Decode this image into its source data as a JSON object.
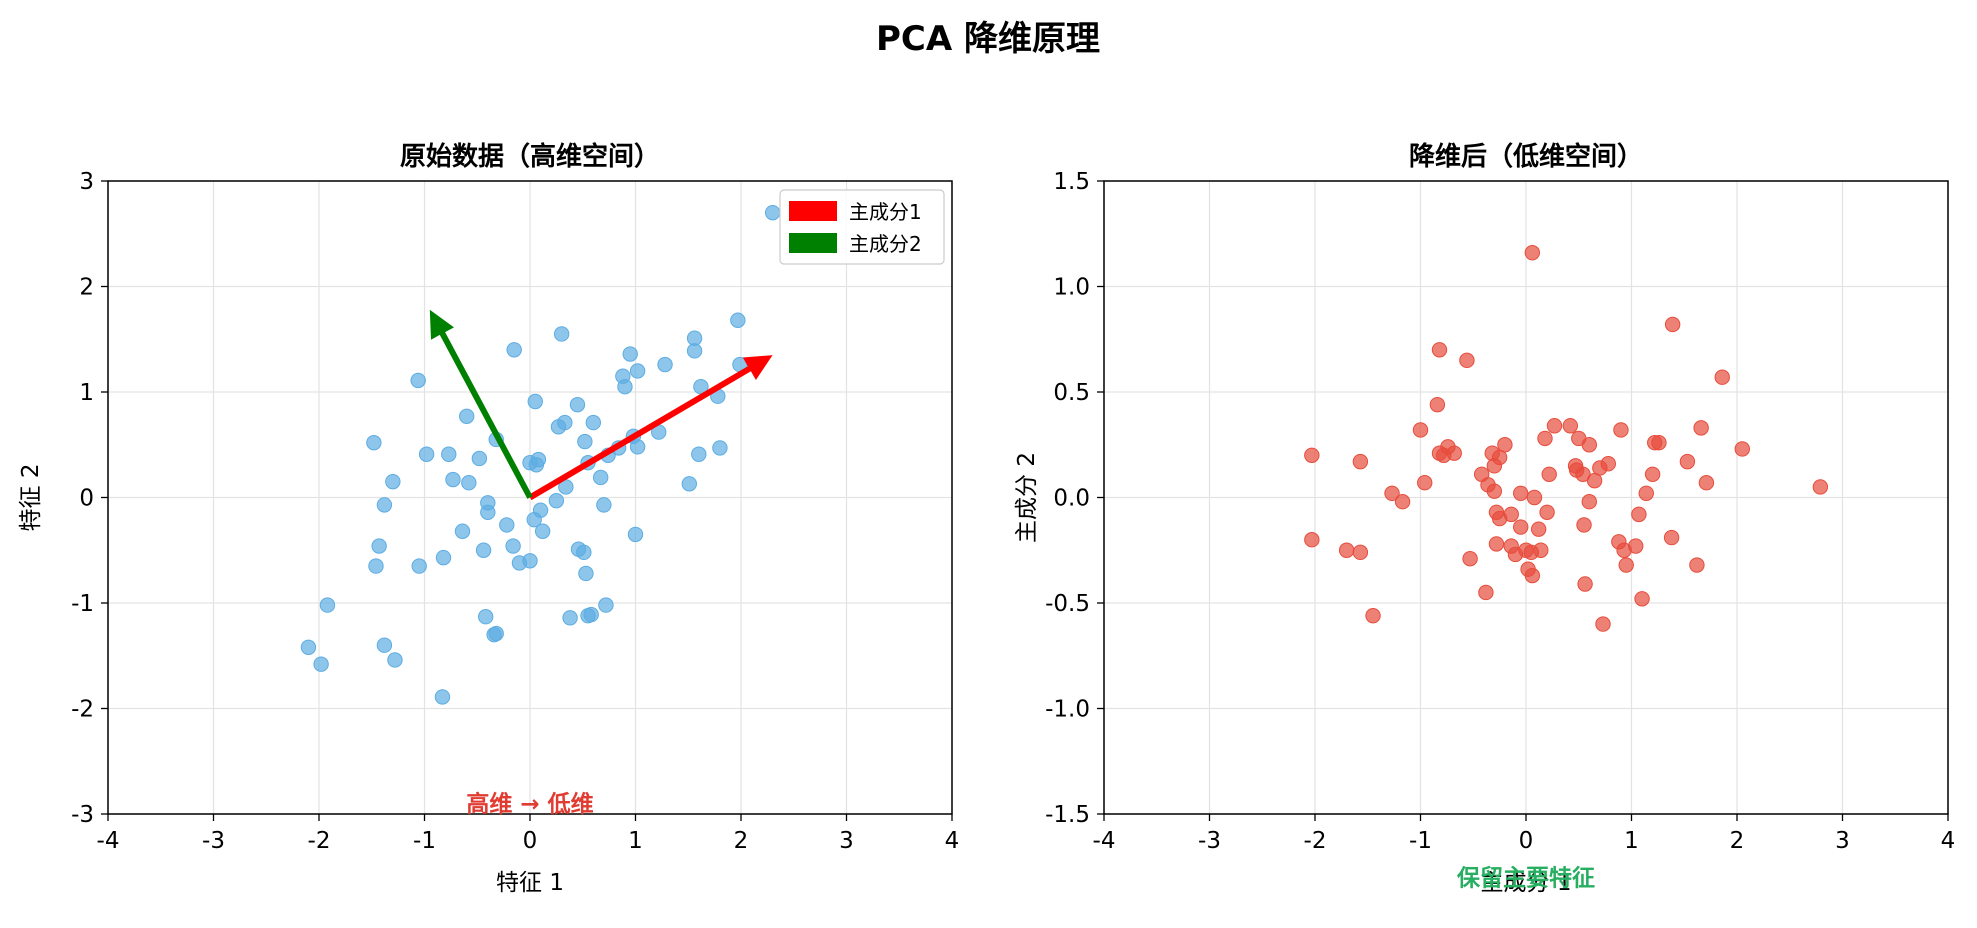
{
  "figure": {
    "title": "PCA 降维原理"
  },
  "chart_data": [
    {
      "type": "scatter",
      "title": "原始数据（高维空间）",
      "xlabel": "特征 1",
      "ylabel": "特征 2",
      "xlim": [
        -4,
        4
      ],
      "ylim": [
        -3,
        3
      ],
      "xticks": [
        -4,
        -3,
        -2,
        -1,
        0,
        1,
        2,
        3,
        4
      ],
      "yticks": [
        -3,
        -2,
        -1,
        0,
        1,
        2,
        3
      ],
      "grid": true,
      "legend": {
        "position": "top-right",
        "entries": [
          {
            "label": "主成分1",
            "color": "#ff0000"
          },
          {
            "label": "主成分2",
            "color": "#008000"
          }
        ]
      },
      "point_color": "#5dade2",
      "arrows": [
        {
          "name": "主成分1",
          "from": [
            0,
            0
          ],
          "to": [
            2.3,
            1.35
          ],
          "color": "#ff0000"
        },
        {
          "name": "主成分2",
          "from": [
            0,
            0
          ],
          "to": [
            -0.95,
            1.78
          ],
          "color": "#008000"
        }
      ],
      "annotation": {
        "text": "高维 → 低维",
        "x": 0,
        "y": -2.9,
        "color": "#e03c31"
      },
      "points": [
        [
          -2.1,
          -1.42
        ],
        [
          -1.98,
          -1.58
        ],
        [
          -1.92,
          -1.02
        ],
        [
          -1.38,
          -1.4
        ],
        [
          -1.28,
          -1.54
        ],
        [
          -0.83,
          -1.89
        ],
        [
          -1.48,
          0.52
        ],
        [
          -1.3,
          0.15
        ],
        [
          -1.38,
          -0.07
        ],
        [
          -1.43,
          -0.46
        ],
        [
          -1.46,
          -0.65
        ],
        [
          -1.06,
          1.11
        ],
        [
          -0.98,
          0.41
        ],
        [
          -1.05,
          -0.65
        ],
        [
          -0.82,
          -0.57
        ],
        [
          -0.77,
          0.41
        ],
        [
          -0.73,
          0.17
        ],
        [
          -0.6,
          0.77
        ],
        [
          -0.58,
          0.14
        ],
        [
          -0.64,
          -0.32
        ],
        [
          -0.48,
          0.37
        ],
        [
          -0.44,
          -0.5
        ],
        [
          -0.4,
          -0.05
        ],
        [
          -0.4,
          -0.14
        ],
        [
          -0.42,
          -1.13
        ],
        [
          -0.32,
          -1.29
        ],
        [
          -0.34,
          -1.3
        ],
        [
          -0.32,
          0.55
        ],
        [
          -0.22,
          -0.26
        ],
        [
          -0.16,
          -0.46
        ],
        [
          -0.15,
          1.4
        ],
        [
          -0.1,
          -0.62
        ],
        [
          0.0,
          -0.6
        ],
        [
          0.0,
          0.33
        ],
        [
          0.05,
          0.91
        ],
        [
          0.06,
          0.31
        ],
        [
          0.08,
          0.36
        ],
        [
          0.04,
          -0.21
        ],
        [
          0.1,
          -0.12
        ],
        [
          0.12,
          -0.32
        ],
        [
          0.25,
          -0.03
        ],
        [
          0.27,
          0.67
        ],
        [
          0.3,
          1.55
        ],
        [
          0.33,
          0.71
        ],
        [
          0.34,
          0.1
        ],
        [
          0.38,
          -1.14
        ],
        [
          0.45,
          0.88
        ],
        [
          0.46,
          -0.49
        ],
        [
          0.51,
          -0.52
        ],
        [
          0.52,
          0.53
        ],
        [
          0.53,
          -0.72
        ],
        [
          0.55,
          0.33
        ],
        [
          0.55,
          -1.12
        ],
        [
          0.58,
          -1.11
        ],
        [
          0.6,
          0.71
        ],
        [
          0.67,
          0.19
        ],
        [
          0.7,
          -0.07
        ],
        [
          0.72,
          -1.02
        ],
        [
          0.74,
          0.4
        ],
        [
          0.84,
          0.47
        ],
        [
          0.88,
          1.15
        ],
        [
          0.9,
          1.05
        ],
        [
          0.95,
          1.36
        ],
        [
          0.98,
          0.58
        ],
        [
          1.0,
          -0.35
        ],
        [
          1.02,
          0.48
        ],
        [
          1.02,
          1.2
        ],
        [
          1.22,
          0.62
        ],
        [
          1.28,
          1.26
        ],
        [
          1.51,
          0.13
        ],
        [
          1.56,
          1.39
        ],
        [
          1.56,
          1.51
        ],
        [
          1.6,
          0.41
        ],
        [
          1.62,
          1.05
        ],
        [
          1.78,
          0.96
        ],
        [
          1.8,
          0.47
        ],
        [
          1.97,
          1.68
        ],
        [
          1.99,
          1.26
        ],
        [
          2.3,
          2.7
        ]
      ]
    },
    {
      "type": "scatter",
      "title": "降维后（低维空间）",
      "xlabel": "主成分 1",
      "ylabel": "主成分 2",
      "xlim": [
        -4,
        4
      ],
      "ylim": [
        -1.5,
        1.5
      ],
      "xticks": [
        -4,
        -3,
        -2,
        -1,
        0,
        1,
        2,
        3,
        4
      ],
      "yticks": [
        -1.5,
        -1.0,
        -0.5,
        0.0,
        0.5,
        1.0,
        1.5
      ],
      "grid": true,
      "point_color": "#e74c3c",
      "annotation": {
        "text": "保留主要特征",
        "x": 0,
        "y": -1.8,
        "color": "#27ae60"
      },
      "points": [
        [
          -2.03,
          0.2
        ],
        [
          -2.03,
          -0.2
        ],
        [
          -1.7,
          -0.25
        ],
        [
          -1.57,
          0.17
        ],
        [
          -1.57,
          -0.26
        ],
        [
          -1.45,
          -0.56
        ],
        [
          -1.27,
          0.02
        ],
        [
          -1.17,
          -0.02
        ],
        [
          -1.0,
          0.32
        ],
        [
          -0.96,
          0.07
        ],
        [
          -0.84,
          0.44
        ],
        [
          -0.82,
          0.7
        ],
        [
          -0.82,
          0.21
        ],
        [
          -0.78,
          0.2
        ],
        [
          -0.74,
          0.24
        ],
        [
          -0.68,
          0.21
        ],
        [
          -0.56,
          0.65
        ],
        [
          -0.53,
          -0.29
        ],
        [
          -0.42,
          0.11
        ],
        [
          -0.38,
          -0.45
        ],
        [
          -0.36,
          0.06
        ],
        [
          -0.32,
          0.21
        ],
        [
          -0.3,
          0.15
        ],
        [
          -0.3,
          0.03
        ],
        [
          -0.28,
          -0.07
        ],
        [
          -0.28,
          -0.22
        ],
        [
          -0.25,
          0.19
        ],
        [
          -0.25,
          -0.1
        ],
        [
          -0.2,
          0.25
        ],
        [
          -0.14,
          -0.08
        ],
        [
          -0.14,
          -0.23
        ],
        [
          -0.1,
          -0.27
        ],
        [
          -0.05,
          -0.14
        ],
        [
          -0.05,
          0.02
        ],
        [
          0.0,
          -0.25
        ],
        [
          0.02,
          -0.34
        ],
        [
          0.05,
          -0.26
        ],
        [
          0.06,
          1.16
        ],
        [
          0.06,
          -0.37
        ],
        [
          0.08,
          0.0
        ],
        [
          0.12,
          -0.15
        ],
        [
          0.14,
          -0.25
        ],
        [
          0.18,
          0.28
        ],
        [
          0.2,
          -0.07
        ],
        [
          0.22,
          0.11
        ],
        [
          0.27,
          0.34
        ],
        [
          0.42,
          0.34
        ],
        [
          0.47,
          0.15
        ],
        [
          0.48,
          0.13
        ],
        [
          0.5,
          0.28
        ],
        [
          0.54,
          0.11
        ],
        [
          0.55,
          -0.13
        ],
        [
          0.56,
          -0.41
        ],
        [
          0.6,
          0.25
        ],
        [
          0.6,
          -0.02
        ],
        [
          0.65,
          0.08
        ],
        [
          0.7,
          0.14
        ],
        [
          0.73,
          -0.6
        ],
        [
          0.78,
          0.16
        ],
        [
          0.88,
          -0.21
        ],
        [
          0.9,
          0.32
        ],
        [
          0.93,
          -0.25
        ],
        [
          0.95,
          -0.32
        ],
        [
          1.04,
          -0.23
        ],
        [
          1.07,
          -0.08
        ],
        [
          1.1,
          -0.48
        ],
        [
          1.14,
          0.02
        ],
        [
          1.2,
          0.11
        ],
        [
          1.22,
          0.26
        ],
        [
          1.26,
          0.26
        ],
        [
          1.39,
          0.82
        ],
        [
          1.38,
          -0.19
        ],
        [
          1.53,
          0.17
        ],
        [
          1.62,
          -0.32
        ],
        [
          1.66,
          0.33
        ],
        [
          1.71,
          0.07
        ],
        [
          1.86,
          0.57
        ],
        [
          2.05,
          0.23
        ],
        [
          2.79,
          0.05
        ]
      ]
    }
  ]
}
